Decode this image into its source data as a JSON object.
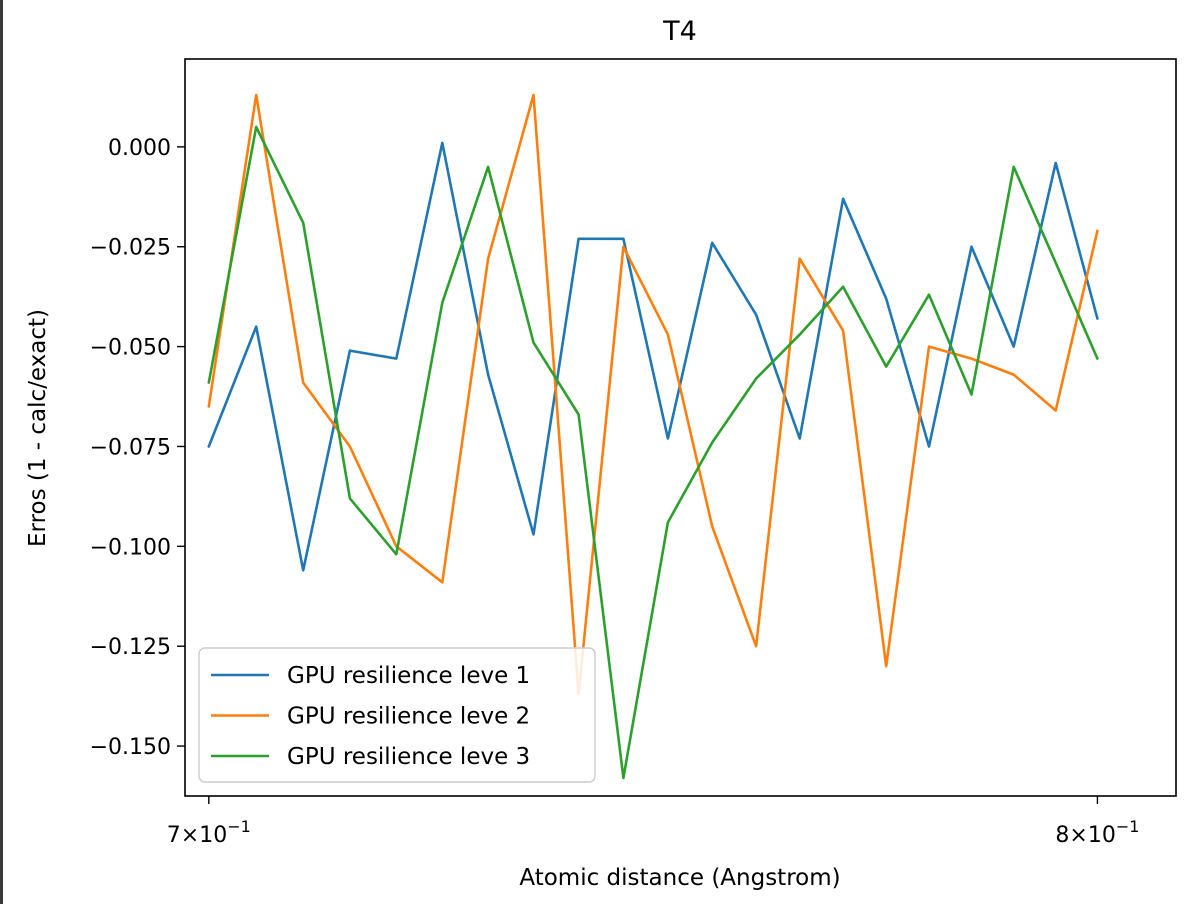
{
  "chart_data": {
    "type": "line",
    "title": "T4",
    "xlabel": "Atomic distance (Angstrom)",
    "ylabel": "Erros (1 - calc/exact)",
    "xscale": "log",
    "xlim": [
      0.6975,
      0.8095
    ],
    "ylim": [
      -0.1625,
      0.022
    ],
    "grid": false,
    "legend_position": "lower-left",
    "x": [
      0.7,
      0.705,
      0.71,
      0.715,
      0.72,
      0.725,
      0.73,
      0.735,
      0.74,
      0.745,
      0.75,
      0.755,
      0.76,
      0.765,
      0.77,
      0.775,
      0.78,
      0.785,
      0.79,
      0.795,
      0.8
    ],
    "xticks": [
      {
        "value": 0.7,
        "base": "7",
        "exp": "−1"
      },
      {
        "value": 0.8,
        "base": "8",
        "exp": "−1"
      }
    ],
    "yticks": [
      {
        "value": 0.0,
        "label": "0.000"
      },
      {
        "value": -0.025,
        "label": "−0.025"
      },
      {
        "value": -0.05,
        "label": "−0.050"
      },
      {
        "value": -0.075,
        "label": "−0.075"
      },
      {
        "value": -0.1,
        "label": "−0.100"
      },
      {
        "value": -0.125,
        "label": "−0.125"
      },
      {
        "value": -0.15,
        "label": "−0.150"
      }
    ],
    "series": [
      {
        "name": "GPU resilience leve 1",
        "color": "#1f77b4",
        "values": [
          -0.075,
          -0.045,
          -0.106,
          -0.051,
          -0.053,
          0.001,
          -0.057,
          -0.097,
          -0.023,
          -0.023,
          -0.073,
          -0.024,
          -0.042,
          -0.073,
          -0.013,
          -0.038,
          -0.075,
          -0.025,
          -0.05,
          -0.004,
          -0.043
        ]
      },
      {
        "name": "GPU resilience leve 2",
        "color": "#ff7f0e",
        "values": [
          -0.065,
          0.013,
          -0.059,
          -0.075,
          -0.1,
          -0.109,
          -0.028,
          0.013,
          -0.137,
          -0.025,
          -0.047,
          -0.095,
          -0.125,
          -0.028,
          -0.046,
          -0.13,
          -0.05,
          -0.053,
          -0.057,
          -0.066,
          -0.021
        ]
      },
      {
        "name": "GPU resilience leve 3",
        "color": "#2ca02c",
        "values": [
          -0.059,
          0.005,
          -0.019,
          -0.088,
          -0.102,
          -0.039,
          -0.005,
          -0.049,
          -0.067,
          -0.158,
          -0.094,
          -0.074,
          -0.058,
          -0.047,
          -0.035,
          -0.055,
          -0.037,
          -0.062,
          -0.005,
          -0.029,
          -0.053
        ]
      }
    ]
  }
}
